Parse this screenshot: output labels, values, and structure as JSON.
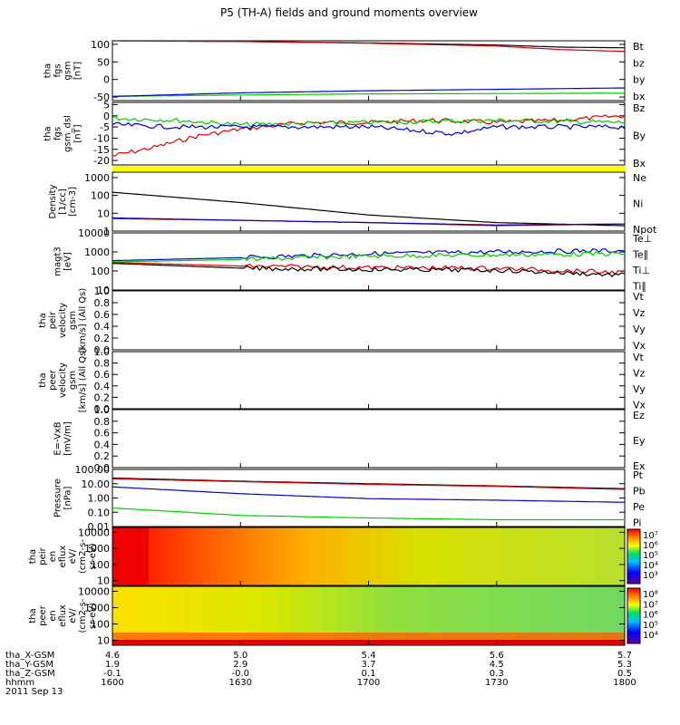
{
  "title": "P5 (TH-A) fields and ground moments overview",
  "colors": {
    "black": "#000000",
    "red": "#dd0000",
    "green": "#00cc00",
    "blue": "#0000cc",
    "yellow": "#ffff00"
  },
  "chart_data": [
    {
      "type": "line",
      "ylabel": [
        "tha",
        "fgs",
        "gsm",
        "[nT]"
      ],
      "ylim": [
        -60,
        110
      ],
      "yticks": [
        "100",
        "50",
        "0",
        "-50"
      ],
      "ytick_values": [
        100,
        50,
        0,
        -50
      ],
      "legend": [
        {
          "name": "Bt",
          "color": "black"
        },
        {
          "name": "bz",
          "color": "red"
        },
        {
          "name": "by",
          "color": "green"
        },
        {
          "name": "bx",
          "color": "blue"
        }
      ],
      "series": [
        {
          "name": "Bt",
          "color": "black",
          "x": [
            1600,
            1630,
            1700,
            1730,
            1745,
            1800
          ],
          "values": [
            110,
            108,
            104,
            98,
            92,
            90
          ]
        },
        {
          "name": "bz",
          "color": "red",
          "x": [
            1600,
            1630,
            1700,
            1730,
            1745,
            1800
          ],
          "values": [
            110,
            108,
            103,
            95,
            85,
            80
          ]
        },
        {
          "name": "by",
          "color": "green",
          "x": [
            1600,
            1630,
            1700,
            1730,
            1800
          ],
          "values": [
            -48,
            -44,
            -41,
            -40,
            -39
          ]
        },
        {
          "name": "bx",
          "color": "blue",
          "x": [
            1600,
            1630,
            1700,
            1730,
            1800
          ],
          "values": [
            -48,
            -38,
            -32,
            -28,
            -24
          ]
        }
      ]
    },
    {
      "type": "line",
      "ylabel": [
        "tha",
        "fgs",
        "gsm_dsl",
        "[nT]"
      ],
      "ylim": [
        -22,
        6
      ],
      "yticks": [
        "5",
        "0",
        "-5",
        "-10",
        "-15",
        "-20"
      ],
      "ytick_values": [
        5,
        0,
        -5,
        -10,
        -15,
        -20
      ],
      "legend": [
        {
          "name": "Bz",
          "color": "red"
        },
        {
          "name": "By",
          "color": "green"
        },
        {
          "name": "Bx",
          "color": "blue"
        }
      ],
      "series": [
        {
          "name": "Bz",
          "color": "red",
          "x": [
            1600,
            1610,
            1620,
            1630,
            1645,
            1700,
            1715,
            1730,
            1745,
            1800
          ],
          "values": [
            -18,
            -14,
            -9,
            -6,
            -3,
            -3,
            -2,
            -3,
            -2,
            0
          ]
        },
        {
          "name": "By",
          "color": "green",
          "x": [
            1600,
            1615,
            1630,
            1700,
            1730,
            1800
          ],
          "values": [
            -1,
            -2,
            -4,
            -3,
            -2,
            -3
          ]
        },
        {
          "name": "Bx",
          "color": "blue",
          "x": [
            1600,
            1615,
            1630,
            1700,
            1720,
            1730,
            1800
          ],
          "values": [
            -4,
            -5,
            -5,
            -5,
            -8,
            -5,
            -5
          ]
        }
      ]
    },
    {
      "type": "line",
      "ylabel": [
        "Density",
        "[1/cc]",
        "[cm-3]"
      ],
      "ylim": [
        1,
        2000
      ],
      "log": true,
      "yticks": [
        "1000",
        "100",
        "10",
        "1"
      ],
      "ytick_values": [
        1000,
        100,
        10,
        1
      ],
      "legend": [
        {
          "name": "Ne",
          "color": "red"
        },
        {
          "name": "Ni",
          "color": "black"
        },
        {
          "name": "Npot",
          "color": "blue"
        }
      ],
      "series": [
        {
          "name": "Ni",
          "color": "black",
          "x": [
            1600,
            1630,
            1700,
            1730,
            1800
          ],
          "values": [
            150,
            40,
            8,
            3,
            2
          ]
        },
        {
          "name": "Ne",
          "color": "red",
          "x": [
            1600,
            1630,
            1700,
            1730,
            1800
          ],
          "values": [
            5,
            4,
            3,
            2,
            2.5
          ]
        },
        {
          "name": "Npot",
          "color": "blue",
          "x": [
            1600,
            1630,
            1700,
            1730,
            1800
          ],
          "values": [
            5.5,
            4,
            3,
            2.2,
            2.5
          ]
        }
      ]
    },
    {
      "type": "line",
      "ylabel": [
        "magt3",
        "[eV]"
      ],
      "ylim": [
        10,
        10000
      ],
      "log": true,
      "yticks": [
        "10000",
        "1000",
        "100",
        "10"
      ],
      "ytick_values": [
        10000,
        1000,
        100,
        10
      ],
      "legend": [
        {
          "name": "Te⊥",
          "color": "red"
        },
        {
          "name": "Te∥",
          "color": "black"
        },
        {
          "name": "Ti⊥",
          "color": "blue"
        },
        {
          "name": "Ti∥",
          "color": "green"
        }
      ],
      "series": [
        {
          "name": "Ti⊥",
          "color": "blue",
          "x": [
            1600,
            1630,
            1700,
            1730,
            1800
          ],
          "values": [
            350,
            500,
            800,
            1000,
            1200
          ]
        },
        {
          "name": "Ti∥",
          "color": "green",
          "x": [
            1600,
            1630,
            1700,
            1730,
            1800
          ],
          "values": [
            300,
            400,
            600,
            700,
            800
          ]
        },
        {
          "name": "Te⊥",
          "color": "red",
          "x": [
            1600,
            1630,
            1700,
            1730,
            1800
          ],
          "values": [
            280,
            180,
            150,
            140,
            80
          ]
        },
        {
          "name": "Te∥",
          "color": "black",
          "x": [
            1600,
            1630,
            1700,
            1730,
            1800
          ],
          "values": [
            250,
            140,
            120,
            110,
            60
          ]
        }
      ]
    },
    {
      "type": "line",
      "ylabel": [
        "tha",
        "peir",
        "velocity",
        "gsm",
        "[km/s] (All Qs)"
      ],
      "ylim": [
        0,
        1
      ],
      "yticks": [
        "1.0",
        "0.8",
        "0.6",
        "0.4",
        "0.2",
        "0.0"
      ],
      "ytick_values": [
        1.0,
        0.8,
        0.6,
        0.4,
        0.2,
        0.0
      ],
      "legend": [
        {
          "name": "Vt",
          "color": "black"
        },
        {
          "name": "Vz",
          "color": "red"
        },
        {
          "name": "Vy",
          "color": "green"
        },
        {
          "name": "Vx",
          "color": "blue"
        }
      ],
      "series": []
    },
    {
      "type": "line",
      "ylabel": [
        "tha",
        "peer",
        "velocity",
        "gsm",
        "[km/s] (All Qs)"
      ],
      "ylim": [
        0,
        1
      ],
      "yticks": [
        "1.0",
        "0.8",
        "0.6",
        "0.4",
        "0.2",
        "0.0"
      ],
      "ytick_values": [
        1.0,
        0.8,
        0.6,
        0.4,
        0.2,
        0.0
      ],
      "legend": [
        {
          "name": "Vt",
          "color": "black"
        },
        {
          "name": "Vz",
          "color": "red"
        },
        {
          "name": "Vy",
          "color": "green"
        },
        {
          "name": "Vx",
          "color": "blue"
        }
      ],
      "series": []
    },
    {
      "type": "line",
      "ylabel": [
        "E=-VxB",
        "[mV/m]"
      ],
      "ylim": [
        0,
        1
      ],
      "yticks": [
        "1.0",
        "0.8",
        "0.6",
        "0.4",
        "0.2",
        "0.0"
      ],
      "ytick_values": [
        1.0,
        0.8,
        0.6,
        0.4,
        0.2,
        0.0
      ],
      "legend": [
        {
          "name": "Ez",
          "color": "red"
        },
        {
          "name": "Ey",
          "color": "green"
        },
        {
          "name": "Ex",
          "color": "blue"
        }
      ],
      "series": []
    },
    {
      "type": "line",
      "ylabel": [
        "Pressure",
        "[nPa]"
      ],
      "ylim": [
        0.01,
        100
      ],
      "log": true,
      "yticks": [
        "100.00",
        "10.00",
        "1.00",
        "0.10",
        "0.01"
      ],
      "ytick_values": [
        100,
        10,
        1,
        0.1,
        0.01
      ],
      "legend": [
        {
          "name": "Pt",
          "color": "black"
        },
        {
          "name": "Pb",
          "color": "red"
        },
        {
          "name": "Pe",
          "color": "green"
        },
        {
          "name": "Pi",
          "color": "blue"
        }
      ],
      "series": [
        {
          "name": "Pt",
          "color": "black",
          "x": [
            1600,
            1630,
            1700,
            1730,
            1800
          ],
          "values": [
            25,
            15,
            10,
            7,
            4.5
          ]
        },
        {
          "name": "Pb",
          "color": "red",
          "x": [
            1600,
            1630,
            1700,
            1730,
            1800
          ],
          "values": [
            22,
            14,
            9,
            6.5,
            4
          ]
        },
        {
          "name": "Pi",
          "color": "blue",
          "x": [
            1600,
            1630,
            1700,
            1730,
            1800
          ],
          "values": [
            6,
            2,
            0.9,
            0.7,
            0.5
          ]
        },
        {
          "name": "Pe",
          "color": "green",
          "x": [
            1600,
            1630,
            1700,
            1730,
            1800
          ],
          "values": [
            0.2,
            0.06,
            0.04,
            0.03,
            0.03
          ]
        }
      ]
    },
    {
      "type": "heatmap",
      "ylabel": [
        "tha",
        "peir",
        "en",
        "eflux",
        "eV/",
        "(cm2-s-",
        "sr-eV)"
      ],
      "log": true,
      "ylim": [
        5,
        20000
      ],
      "yticks": [
        "10000",
        "1000",
        "100",
        "10"
      ],
      "ytick_values": [
        10000,
        1000,
        100,
        10
      ],
      "colorbar": {
        "ticks": [
          "10⁷",
          "10⁶",
          "10⁵",
          "10⁴",
          "10³"
        ]
      }
    },
    {
      "type": "heatmap",
      "ylabel": [
        "tha",
        "peer",
        "en",
        "eflux",
        "eV/",
        "(cm2-s-",
        "sr-eV)"
      ],
      "log": true,
      "ylim": [
        5,
        20000
      ],
      "yticks": [
        "10000",
        "1000",
        "100",
        "10"
      ],
      "ytick_values": [
        10000,
        1000,
        100,
        10
      ],
      "colorbar": {
        "ticks": [
          "10⁸",
          "10⁷",
          "10⁶",
          "10⁵",
          "10⁴"
        ]
      }
    }
  ],
  "x_axis": {
    "row_labels": [
      "tha_X-GSM",
      "tha_Y-GSM",
      "tha_Z-GSM",
      "hhmm",
      "2011 Sep 13"
    ],
    "x_values": [
      1600,
      1630,
      1700,
      1730,
      1800
    ],
    "columns": [
      [
        "4.6",
        "1.9",
        "-0.1",
        "1600"
      ],
      [
        "5.0",
        "2.9",
        "-0.0",
        "1630"
      ],
      [
        "5.4",
        "3.7",
        "0.1",
        "1700"
      ],
      [
        "5.6",
        "4.5",
        "0.3",
        "1730"
      ],
      [
        "5.7",
        "5.3",
        "0.5",
        "1800"
      ]
    ]
  }
}
